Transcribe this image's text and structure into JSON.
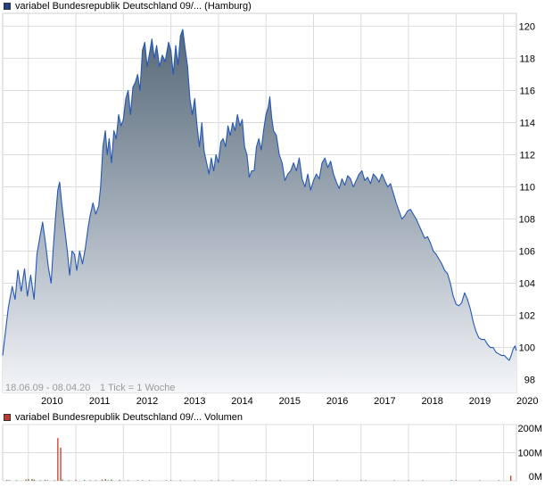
{
  "price_panel": {
    "legend": "variabel Bundesrepublik Deutschland 09/... (Hamburg)",
    "legend_color": "#1f3f8f",
    "footer_range": "18.06.09 - 08.04.20",
    "footer_tick": "1 Tick = 1 Woche",
    "line_color": "#2357b8",
    "fill_top_color": "#566878",
    "fill_bottom_color": "#f4f6f9",
    "grid_color": "#dcdcdc"
  },
  "volume_panel": {
    "legend": "variabel Bundesrepublik Deutschland 09/... Volumen",
    "legend_color": "#c0392b"
  },
  "chart_data": [
    {
      "type": "area",
      "x_unit": "year",
      "x_tick_labels": [
        "2010",
        "2011",
        "2012",
        "2013",
        "2014",
        "2015",
        "2016",
        "2017",
        "2018",
        "2019",
        "2020"
      ],
      "y_tick_labels": [
        "98",
        "100",
        "102",
        "104",
        "106",
        "108",
        "110",
        "112",
        "114",
        "116",
        "118",
        "120"
      ],
      "ylim": [
        97.2,
        120.8
      ],
      "xlim": [
        2009.46,
        2020.27
      ],
      "grid": true,
      "y_axis_position": "right",
      "series": [
        {
          "points": [
            [
              2009.46,
              99.5
            ],
            [
              2009.52,
              101.0
            ],
            [
              2009.58,
              102.5
            ],
            [
              2009.66,
              103.8
            ],
            [
              2009.72,
              103.0
            ],
            [
              2009.78,
              104.8
            ],
            [
              2009.85,
              103.5
            ],
            [
              2009.92,
              104.9
            ],
            [
              2009.98,
              103.2
            ],
            [
              2010.05,
              104.5
            ],
            [
              2010.12,
              103.0
            ],
            [
              2010.18,
              105.8
            ],
            [
              2010.25,
              107.0
            ],
            [
              2010.3,
              107.8
            ],
            [
              2010.36,
              106.5
            ],
            [
              2010.42,
              105.0
            ],
            [
              2010.48,
              104.0
            ],
            [
              2010.52,
              106.0
            ],
            [
              2010.57,
              108.0
            ],
            [
              2010.62,
              109.8
            ],
            [
              2010.66,
              110.3
            ],
            [
              2010.7,
              109.0
            ],
            [
              2010.76,
              107.5
            ],
            [
              2010.82,
              106.0
            ],
            [
              2010.87,
              104.5
            ],
            [
              2010.92,
              106.0
            ],
            [
              2010.97,
              105.8
            ],
            [
              2011.02,
              104.8
            ],
            [
              2011.08,
              106.0
            ],
            [
              2011.14,
              105.2
            ],
            [
              2011.2,
              106.2
            ],
            [
              2011.26,
              107.5
            ],
            [
              2011.3,
              108.2
            ],
            [
              2011.36,
              109.0
            ],
            [
              2011.42,
              108.3
            ],
            [
              2011.48,
              108.8
            ],
            [
              2011.52,
              110.0
            ],
            [
              2011.57,
              112.5
            ],
            [
              2011.62,
              113.5
            ],
            [
              2011.66,
              112.0
            ],
            [
              2011.7,
              113.0
            ],
            [
              2011.75,
              111.5
            ],
            [
              2011.8,
              113.5
            ],
            [
              2011.85,
              113.0
            ],
            [
              2011.9,
              114.5
            ],
            [
              2011.95,
              113.8
            ],
            [
              2012.0,
              114.2
            ],
            [
              2012.05,
              115.5
            ],
            [
              2012.1,
              116.0
            ],
            [
              2012.15,
              114.5
            ],
            [
              2012.2,
              116.2
            ],
            [
              2012.25,
              116.5
            ],
            [
              2012.3,
              117.0
            ],
            [
              2012.35,
              116.0
            ],
            [
              2012.4,
              118.5
            ],
            [
              2012.45,
              119.0
            ],
            [
              2012.5,
              117.5
            ],
            [
              2012.55,
              118.3
            ],
            [
              2012.6,
              119.2
            ],
            [
              2012.65,
              118.0
            ],
            [
              2012.7,
              118.8
            ],
            [
              2012.76,
              117.5
            ],
            [
              2012.82,
              118.2
            ],
            [
              2012.88,
              117.8
            ],
            [
              2012.95,
              119.0
            ],
            [
              2013.0,
              118.5
            ],
            [
              2013.05,
              117.0
            ],
            [
              2013.1,
              118.8
            ],
            [
              2013.15,
              117.6
            ],
            [
              2013.2,
              119.4
            ],
            [
              2013.25,
              119.8
            ],
            [
              2013.3,
              118.6
            ],
            [
              2013.35,
              117.5
            ],
            [
              2013.4,
              115.5
            ],
            [
              2013.45,
              114.5
            ],
            [
              2013.5,
              115.5
            ],
            [
              2013.55,
              113.8
            ],
            [
              2013.6,
              112.5
            ],
            [
              2013.65,
              114.0
            ],
            [
              2013.7,
              112.2
            ],
            [
              2013.75,
              111.5
            ],
            [
              2013.8,
              110.8
            ],
            [
              2013.85,
              111.8
            ],
            [
              2013.9,
              111.0
            ],
            [
              2013.95,
              112.0
            ],
            [
              2014.0,
              111.5
            ],
            [
              2014.05,
              112.8
            ],
            [
              2014.1,
              113.0
            ],
            [
              2014.15,
              112.5
            ],
            [
              2014.2,
              113.8
            ],
            [
              2014.25,
              113.2
            ],
            [
              2014.3,
              114.0
            ],
            [
              2014.35,
              113.5
            ],
            [
              2014.4,
              114.5
            ],
            [
              2014.45,
              113.8
            ],
            [
              2014.5,
              114.2
            ],
            [
              2014.55,
              112.5
            ],
            [
              2014.6,
              112.0
            ],
            [
              2014.65,
              110.6
            ],
            [
              2014.7,
              111.0
            ],
            [
              2014.75,
              111.0
            ],
            [
              2014.8,
              112.5
            ],
            [
              2014.85,
              113.0
            ],
            [
              2014.9,
              112.3
            ],
            [
              2014.95,
              113.5
            ],
            [
              2015.0,
              114.5
            ],
            [
              2015.05,
              115.0
            ],
            [
              2015.08,
              115.6
            ],
            [
              2015.12,
              114.3
            ],
            [
              2015.16,
              113.5
            ],
            [
              2015.22,
              113.2
            ],
            [
              2015.28,
              112.0
            ],
            [
              2015.34,
              111.5
            ],
            [
              2015.4,
              110.4
            ],
            [
              2015.46,
              110.8
            ],
            [
              2015.52,
              111.0
            ],
            [
              2015.58,
              111.5
            ],
            [
              2015.64,
              111.0
            ],
            [
              2015.7,
              111.8
            ],
            [
              2015.76,
              110.5
            ],
            [
              2015.82,
              110.0
            ],
            [
              2015.88,
              110.8
            ],
            [
              2015.94,
              109.8
            ],
            [
              2016.0,
              110.4
            ],
            [
              2016.06,
              110.8
            ],
            [
              2016.12,
              110.5
            ],
            [
              2016.18,
              111.5
            ],
            [
              2016.24,
              111.8
            ],
            [
              2016.3,
              111.2
            ],
            [
              2016.36,
              111.6
            ],
            [
              2016.42,
              110.8
            ],
            [
              2016.48,
              110.3
            ],
            [
              2016.54,
              109.9
            ],
            [
              2016.6,
              110.5
            ],
            [
              2016.66,
              110.1
            ],
            [
              2016.72,
              110.7
            ],
            [
              2016.78,
              110.5
            ],
            [
              2016.84,
              110.0
            ],
            [
              2016.9,
              110.4
            ],
            [
              2016.96,
              110.8
            ],
            [
              2017.02,
              111.0
            ],
            [
              2017.08,
              110.4
            ],
            [
              2017.14,
              110.6
            ],
            [
              2017.2,
              110.2
            ],
            [
              2017.26,
              110.8
            ],
            [
              2017.32,
              110.6
            ],
            [
              2017.38,
              110.3
            ],
            [
              2017.44,
              110.8
            ],
            [
              2017.5,
              110.4
            ],
            [
              2017.56,
              110.0
            ],
            [
              2017.62,
              110.2
            ],
            [
              2017.68,
              109.6
            ],
            [
              2017.74,
              109.0
            ],
            [
              2017.8,
              108.5
            ],
            [
              2017.86,
              108.0
            ],
            [
              2017.92,
              108.2
            ],
            [
              2017.98,
              108.5
            ],
            [
              2018.04,
              108.6
            ],
            [
              2018.1,
              108.3
            ],
            [
              2018.16,
              108.0
            ],
            [
              2018.22,
              107.6
            ],
            [
              2018.28,
              107.2
            ],
            [
              2018.34,
              106.8
            ],
            [
              2018.4,
              106.9
            ],
            [
              2018.46,
              106.5
            ],
            [
              2018.52,
              106.0
            ],
            [
              2018.58,
              105.8
            ],
            [
              2018.64,
              105.5
            ],
            [
              2018.7,
              105.2
            ],
            [
              2018.76,
              104.8
            ],
            [
              2018.82,
              104.6
            ],
            [
              2018.88,
              104.0
            ],
            [
              2018.94,
              103.2
            ],
            [
              2019.0,
              102.7
            ],
            [
              2019.06,
              102.6
            ],
            [
              2019.12,
              102.8
            ],
            [
              2019.18,
              103.4
            ],
            [
              2019.24,
              103.0
            ],
            [
              2019.3,
              102.4
            ],
            [
              2019.36,
              101.6
            ],
            [
              2019.42,
              101.0
            ],
            [
              2019.48,
              100.6
            ],
            [
              2019.54,
              100.5
            ],
            [
              2019.6,
              100.5
            ],
            [
              2019.66,
              100.2
            ],
            [
              2019.72,
              100.0
            ],
            [
              2019.78,
              100.0
            ],
            [
              2019.84,
              99.7
            ],
            [
              2019.9,
              99.6
            ],
            [
              2019.96,
              99.5
            ],
            [
              2020.02,
              99.5
            ],
            [
              2020.08,
              99.3
            ],
            [
              2020.12,
              99.2
            ],
            [
              2020.16,
              99.5
            ],
            [
              2020.2,
              99.9
            ],
            [
              2020.24,
              100.1
            ],
            [
              2020.27,
              99.8
            ]
          ]
        }
      ]
    },
    {
      "type": "bar",
      "x_unit": "year",
      "y_tick_labels": [
        "200M",
        "100M",
        "0M"
      ],
      "ylim": [
        0,
        200
      ],
      "y_unit": "M",
      "grid": true,
      "y_axis_position": "right",
      "series": [
        {
          "color": "#2e8b3a",
          "bars": [
            [
              2009.55,
              3
            ],
            [
              2009.75,
              2
            ],
            [
              2009.95,
              4
            ],
            [
              2010.08,
              6
            ],
            [
              2010.25,
              2
            ],
            [
              2010.35,
              3
            ],
            [
              2010.55,
              2
            ],
            [
              2010.72,
              4
            ],
            [
              2010.85,
              2
            ],
            [
              2011.18,
              3
            ],
            [
              2011.3,
              2
            ],
            [
              2011.42,
              2
            ],
            [
              2011.62,
              6
            ],
            [
              2011.75,
              4
            ],
            [
              2011.92,
              3
            ],
            [
              2012.1,
              2
            ],
            [
              2012.3,
              2
            ],
            [
              2012.55,
              2
            ],
            [
              2012.9,
              2
            ],
            [
              2013.2,
              2
            ],
            [
              2013.5,
              2
            ],
            [
              2013.85,
              2
            ],
            [
              2014.3,
              2
            ],
            [
              2014.8,
              2
            ],
            [
              2015.3,
              2
            ],
            [
              2015.9,
              2
            ],
            [
              2016.5,
              2
            ],
            [
              2017.1,
              2
            ],
            [
              2017.7,
              2
            ],
            [
              2018.3,
              2
            ],
            [
              2018.9,
              2
            ],
            [
              2019.5,
              2
            ],
            [
              2019.9,
              2
            ]
          ]
        },
        {
          "color": "#d03a2a",
          "bars": [
            [
              2009.6,
              2
            ],
            [
              2010.0,
              6
            ],
            [
              2010.12,
              4
            ],
            [
              2010.4,
              2
            ],
            [
              2010.62,
              152
            ],
            [
              2010.68,
              118
            ],
            [
              2011.0,
              3
            ],
            [
              2011.55,
              4
            ],
            [
              2011.68,
              2
            ],
            [
              2012.4,
              2
            ],
            [
              2013.0,
              2
            ],
            [
              2014.0,
              2
            ],
            [
              2015.0,
              2
            ],
            [
              2016.0,
              2
            ],
            [
              2017.0,
              2
            ],
            [
              2018.0,
              2
            ],
            [
              2019.0,
              2
            ],
            [
              2020.15,
              18
            ]
          ]
        }
      ]
    }
  ]
}
